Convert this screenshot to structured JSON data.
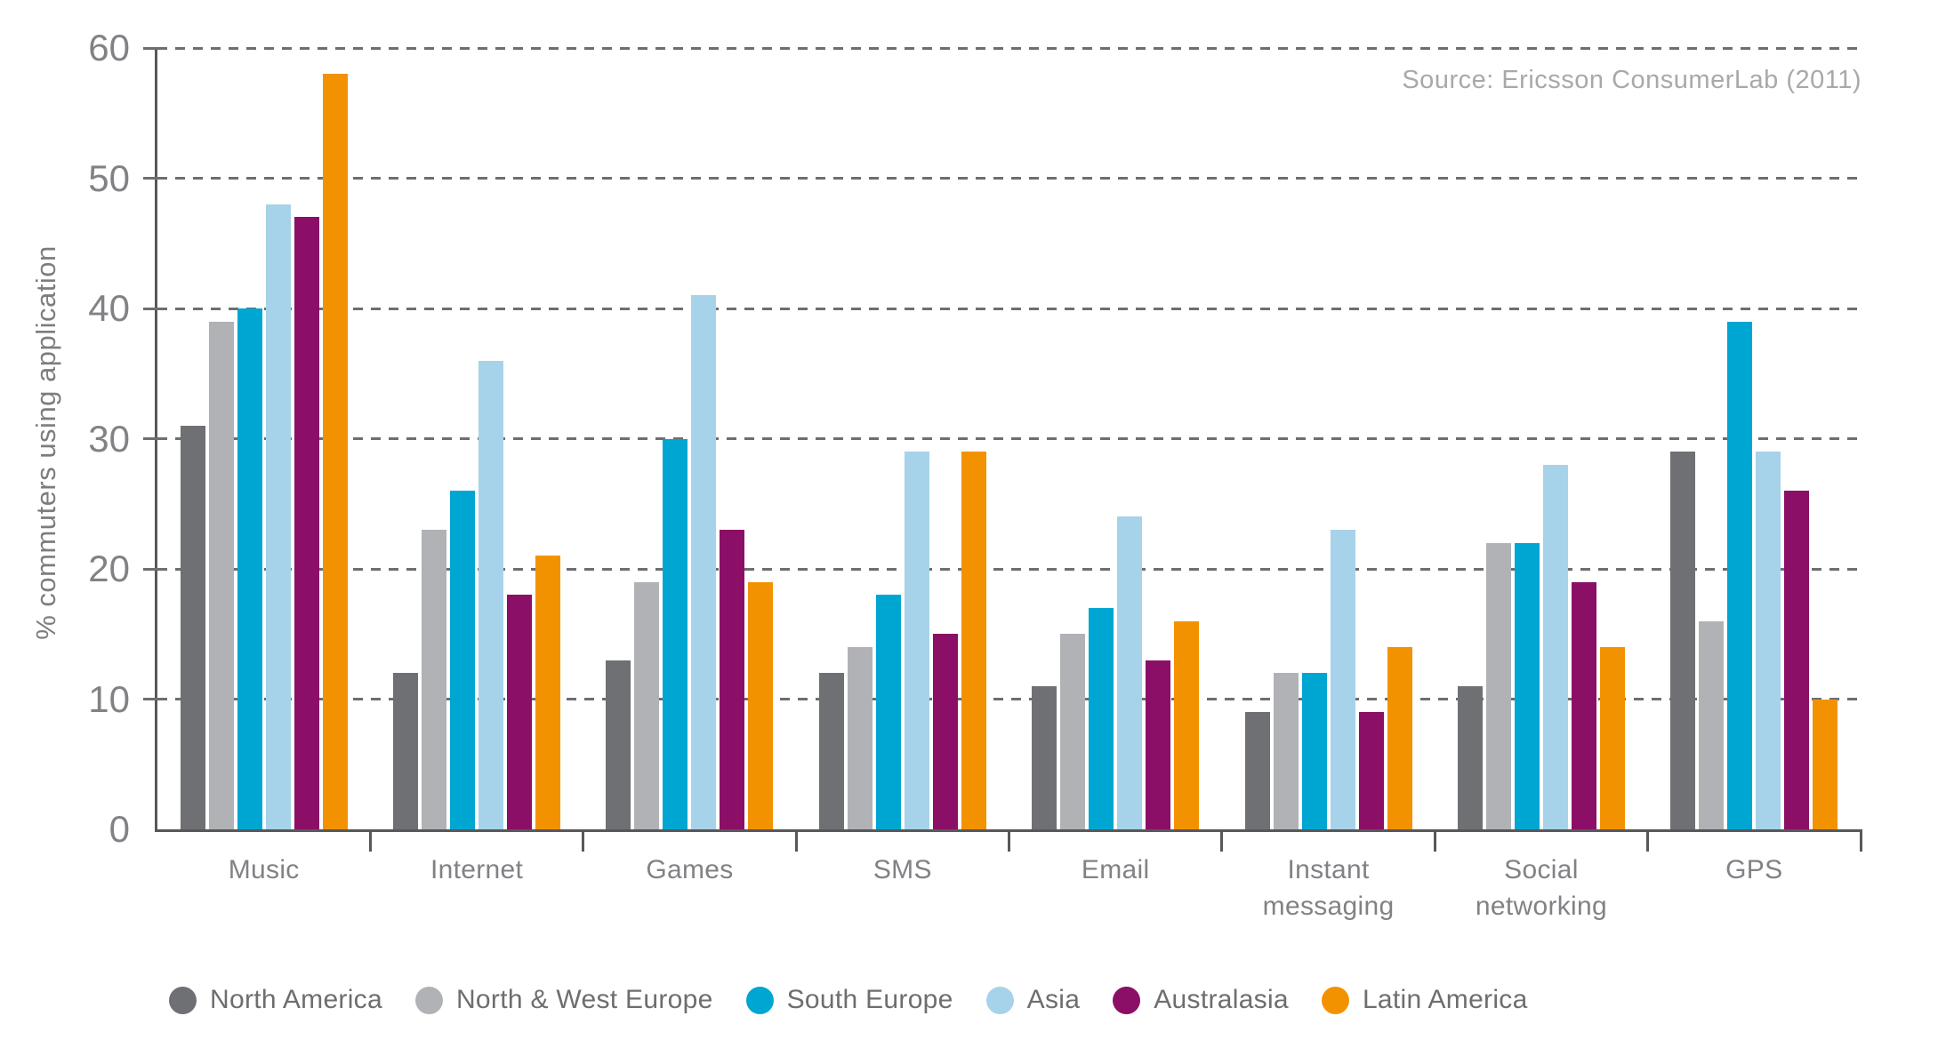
{
  "source_note": "Source: Ericsson ConsumerLab (2011)",
  "y_axis_title": "% commuters using application",
  "chart_data": {
    "type": "bar",
    "title": "",
    "xlabel": "",
    "ylabel": "% commuters using application",
    "ylim": [
      0,
      60
    ],
    "y_tick_interval": 10,
    "y_tick_labels": [
      "0",
      "10",
      "20",
      "30",
      "40",
      "50",
      "60"
    ],
    "grid": "horizontal dashed gridlines at 10-60, solid baseline at 0",
    "legend_position": "bottom-left",
    "source": "Source: Ericsson ConsumerLab (2011)",
    "categories": [
      "Music",
      "Internet",
      "Games",
      "SMS",
      "Email",
      "Instant messaging",
      "Social networking",
      "GPS"
    ],
    "category_label_lines": [
      [
        "Music"
      ],
      [
        "Internet"
      ],
      [
        "Games"
      ],
      [
        "SMS"
      ],
      [
        "Email"
      ],
      [
        "Instant",
        "messaging"
      ],
      [
        "Social",
        "networking"
      ],
      [
        "GPS"
      ]
    ],
    "series": [
      {
        "name": "North America",
        "color": "#6f7073",
        "values": [
          31,
          12,
          13,
          12,
          11,
          9,
          11,
          29
        ]
      },
      {
        "name": "North & West Europe",
        "color": "#b0b2b5",
        "values": [
          39,
          23,
          19,
          14,
          15,
          12,
          22,
          16
        ]
      },
      {
        "name": "South Europe",
        "color": "#00a6d2",
        "values": [
          40,
          26,
          30,
          18,
          17,
          12,
          22,
          39
        ]
      },
      {
        "name": "Asia",
        "color": "#a6d3e9",
        "values": [
          48,
          36,
          41,
          29,
          24,
          23,
          28,
          29
        ]
      },
      {
        "name": "Australasia",
        "color": "#8b0f67",
        "values": [
          47,
          18,
          23,
          15,
          13,
          9,
          19,
          26
        ]
      },
      {
        "name": "Latin America",
        "color": "#f39200",
        "values": [
          58,
          21,
          19,
          29,
          16,
          14,
          14,
          10
        ]
      }
    ]
  },
  "colors": {
    "background": "#ffffff",
    "axis": "#58585b",
    "gridline": "#6d6e70",
    "tick_label": "#808285",
    "category_label": "#808285",
    "legend_text": "#6d6e70",
    "source_text": "#a7a9ac",
    "y_title_text": "#7c7d80"
  }
}
